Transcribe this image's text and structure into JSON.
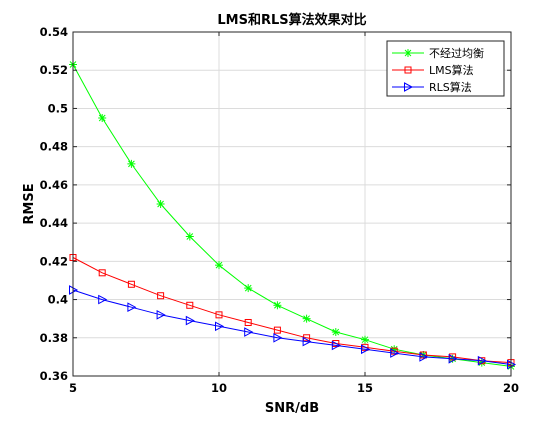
{
  "chart_data": {
    "type": "line",
    "title": "LMS和RLS算法效果对比",
    "xlabel": "SNR/dB",
    "ylabel": "RMSE",
    "xlim": [
      5,
      20
    ],
    "ylim": [
      0.36,
      0.54
    ],
    "xticks": [
      5,
      10,
      15,
      20
    ],
    "yticks": [
      0.36,
      0.38,
      0.4,
      0.42,
      0.44,
      0.46,
      0.48,
      0.5,
      0.52,
      0.54
    ],
    "grid": true,
    "legend_position": "top-right",
    "x": [
      5,
      6,
      7,
      8,
      9,
      10,
      11,
      12,
      13,
      14,
      15,
      16,
      17,
      18,
      19,
      20
    ],
    "series": [
      {
        "name": "不经过均衡",
        "color": "#00ff00",
        "marker": "asterisk",
        "values": [
          0.523,
          0.495,
          0.471,
          0.45,
          0.433,
          0.418,
          0.406,
          0.397,
          0.39,
          0.383,
          0.379,
          0.374,
          0.371,
          0.369,
          0.367,
          0.365
        ]
      },
      {
        "name": "LMS算法",
        "color": "#ff0000",
        "marker": "square",
        "values": [
          0.422,
          0.414,
          0.408,
          0.402,
          0.397,
          0.392,
          0.388,
          0.384,
          0.38,
          0.377,
          0.375,
          0.373,
          0.371,
          0.37,
          0.368,
          0.367
        ]
      },
      {
        "name": "RLS算法",
        "color": "#0000ff",
        "marker": "triangle-right",
        "values": [
          0.405,
          0.4,
          0.396,
          0.392,
          0.389,
          0.386,
          0.383,
          0.38,
          0.378,
          0.376,
          0.374,
          0.372,
          0.37,
          0.369,
          0.368,
          0.366
        ]
      }
    ]
  }
}
